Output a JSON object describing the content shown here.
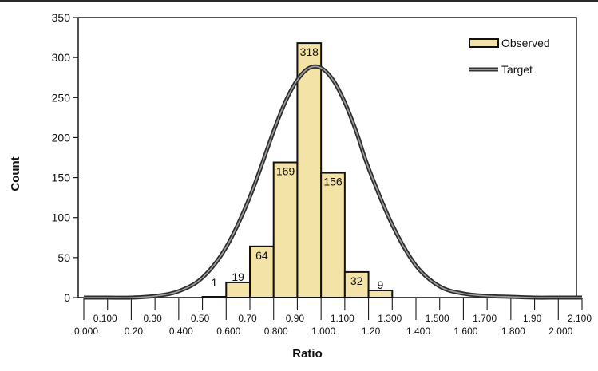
{
  "chart_data": {
    "type": "bar",
    "title": "",
    "xlabel": "Ratio",
    "ylabel": "Count",
    "ylim": [
      0,
      350
    ],
    "y_ticks": [
      0,
      50,
      100,
      150,
      200,
      250,
      300,
      350
    ],
    "xlim": [
      0.0,
      2.1
    ],
    "x_tick_labels_upper": [
      {
        "x": 0.1,
        "label": "0.100"
      },
      {
        "x": 0.3,
        "label": "0.30"
      },
      {
        "x": 0.5,
        "label": "0.50"
      },
      {
        "x": 0.7,
        "label": "0.70"
      },
      {
        "x": 0.9,
        "label": "0.90"
      },
      {
        "x": 1.1,
        "label": "1.100"
      },
      {
        "x": 1.3,
        "label": "1.300"
      },
      {
        "x": 1.5,
        "label": "1.500"
      },
      {
        "x": 1.7,
        "label": "1.700"
      },
      {
        "x": 1.9,
        "label": "1.90"
      },
      {
        "x": 2.1,
        "label": "2.100"
      }
    ],
    "x_tick_labels_lower": [
      {
        "x": 0.0,
        "label": "0.000"
      },
      {
        "x": 0.2,
        "label": "0.20"
      },
      {
        "x": 0.4,
        "label": "0.400"
      },
      {
        "x": 0.6,
        "label": "0.600"
      },
      {
        "x": 0.8,
        "label": "0.800"
      },
      {
        "x": 1.0,
        "label": "1.000"
      },
      {
        "x": 1.2,
        "label": "1.20"
      },
      {
        "x": 1.4,
        "label": "1.400"
      },
      {
        "x": 1.6,
        "label": "1.600"
      },
      {
        "x": 1.8,
        "label": "1.800"
      },
      {
        "x": 2.0,
        "label": "2.000"
      }
    ],
    "grid": false,
    "legend_position": "top-right",
    "series": [
      {
        "name": "Observed",
        "kind": "histogram",
        "color": "#f4e3a6",
        "bins": [
          {
            "x0": 0.5,
            "x1": 0.6,
            "value": 1,
            "label": "1"
          },
          {
            "x0": 0.6,
            "x1": 0.7,
            "value": 19,
            "label": "19"
          },
          {
            "x0": 0.7,
            "x1": 0.8,
            "value": 64,
            "label": "64"
          },
          {
            "x0": 0.8,
            "x1": 0.9,
            "value": 169,
            "label": "169"
          },
          {
            "x0": 0.9,
            "x1": 1.0,
            "value": 318,
            "label": "318"
          },
          {
            "x0": 1.0,
            "x1": 1.1,
            "value": 156,
            "label": "156"
          },
          {
            "x0": 1.1,
            "x1": 1.2,
            "value": 32,
            "label": "32"
          },
          {
            "x0": 1.2,
            "x1": 1.3,
            "value": 9,
            "label": "9"
          }
        ]
      },
      {
        "name": "Target",
        "kind": "line",
        "color": "#555555",
        "x": [
          0.0,
          0.1,
          0.2,
          0.3,
          0.4,
          0.5,
          0.6,
          0.7,
          0.8,
          0.85,
          0.9,
          0.95,
          1.0,
          1.05,
          1.1,
          1.15,
          1.2,
          1.3,
          1.4,
          1.5,
          1.6,
          1.7,
          1.8,
          1.9,
          2.0,
          2.1
        ],
        "y": [
          0,
          0,
          0,
          2,
          8,
          25,
          63,
          126,
          208,
          245,
          272,
          287,
          287,
          272,
          244,
          206,
          162,
          91,
          40,
          14,
          5,
          2,
          1,
          0,
          0,
          0
        ]
      }
    ]
  }
}
